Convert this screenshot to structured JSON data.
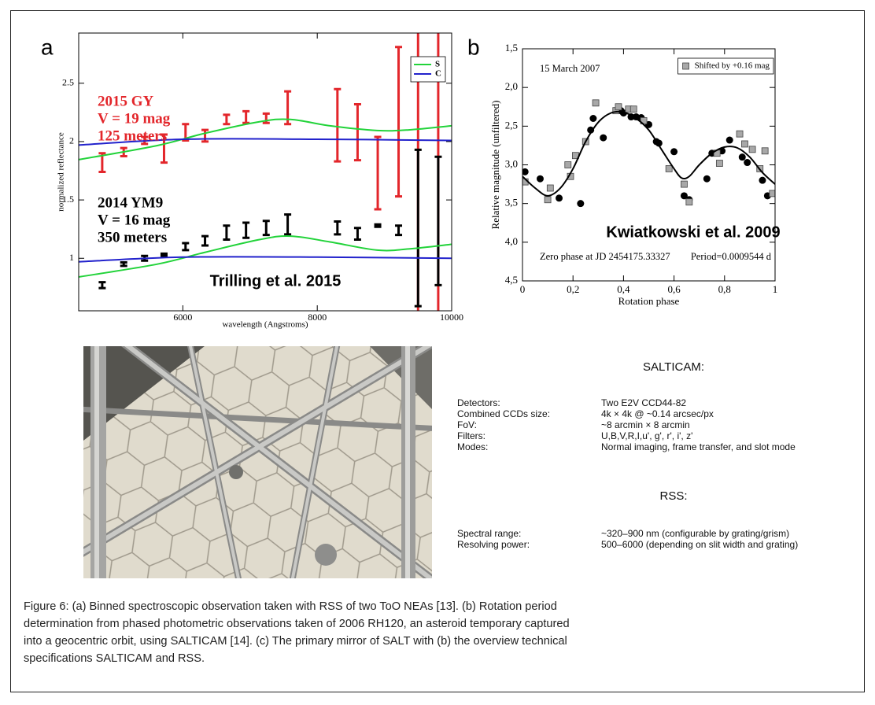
{
  "chart_data": [
    {
      "type": "errorbar",
      "panel": "a",
      "xlabel": "wavelength (Angstroms)",
      "ylabel": "normalized reflectance",
      "xlim": [
        4450,
        10000
      ],
      "ylim": [
        0.55,
        2.93
      ],
      "xticks": [
        6000,
        8000,
        10000
      ],
      "yticks": [
        1,
        1.5,
        2,
        2.5
      ],
      "citation": "Trilling et al. 2015",
      "legend": "upper right",
      "series": [
        {
          "name": "2015 GY",
          "details": [
            "V = 19 mag",
            "125 meters"
          ],
          "color": "#e3262b",
          "x": [
            4800,
            5120,
            5430,
            5720,
            6040,
            6330,
            6650,
            6940,
            7240,
            7560,
            8300,
            8600,
            8900,
            9210,
            9500,
            9800
          ],
          "values": [
            1.82,
            1.91,
            2.01,
            1.94,
            2.08,
            2.05,
            2.19,
            2.21,
            2.2,
            2.29,
            2.14,
            2.08,
            1.73,
            2.17,
            1.8,
            1.8
          ],
          "errors": [
            0.08,
            0.035,
            0.03,
            0.12,
            0.07,
            0.05,
            0.04,
            0.05,
            0.04,
            0.14,
            0.31,
            0.24,
            0.31,
            0.64,
            1.4,
            1.4
          ]
        },
        {
          "name": "2014 YM9",
          "details": [
            "V = 16 mag",
            "350 meters"
          ],
          "color": "#000000",
          "x": [
            4800,
            5120,
            5430,
            5720,
            6040,
            6330,
            6650,
            6940,
            7240,
            7560,
            8300,
            8600,
            8900,
            9210,
            9500,
            9800
          ],
          "values": [
            0.77,
            0.95,
            1.0,
            1.03,
            1.1,
            1.15,
            1.22,
            1.24,
            1.26,
            1.29,
            1.26,
            1.21,
            1.28,
            1.24,
            1.26,
            1.32
          ],
          "errors": [
            0.025,
            0.015,
            0.02,
            0.01,
            0.03,
            0.04,
            0.06,
            0.065,
            0.06,
            0.085,
            0.055,
            0.05,
            0.01,
            0.04,
            0.67,
            0.55
          ]
        },
        {
          "name": "S",
          "type": "line",
          "color": "#22d33a",
          "x": [
            4450,
            5620,
            6320,
            7140,
            7600,
            8190,
            8890,
            9360,
            10000,
            null,
            4450,
            5620,
            6320,
            7140,
            7600,
            8190,
            8890,
            9360,
            10000
          ],
          "values": [
            1.845,
            1.966,
            2.07,
            2.17,
            2.19,
            2.135,
            2.095,
            2.1,
            2.135,
            null,
            0.84,
            0.95,
            1.05,
            1.16,
            1.19,
            1.14,
            1.07,
            1.08,
            1.12
          ]
        },
        {
          "name": "C",
          "type": "line",
          "color": "#2222cc",
          "x": [
            4450,
            6000,
            8000,
            10000,
            null,
            4450,
            6000,
            8000,
            10000
          ],
          "values": [
            1.97,
            2.02,
            2.02,
            2.01,
            null,
            0.97,
            1.01,
            1.01,
            1.0
          ]
        }
      ]
    },
    {
      "type": "scatter",
      "panel": "b",
      "xlabel": "Rotation phase",
      "ylabel": "Relative magnitude (unfiltered)",
      "xlim": [
        0,
        1
      ],
      "ylim": [
        1.5,
        4.5
      ],
      "y_inverted": true,
      "xticks": [
        0,
        {
          "value": 0.2,
          "label": "0,2"
        },
        {
          "value": 0.4,
          "label": "0,4"
        },
        {
          "value": 0.6,
          "label": "0,6"
        },
        {
          "value": 0.8,
          "label": "0,8"
        },
        1
      ],
      "yticks": [
        {
          "value": 1.5,
          "label": "1,5"
        },
        {
          "value": 2.0,
          "label": "2,0"
        },
        {
          "value": 2.5,
          "label": "2,5"
        },
        {
          "value": 3.0,
          "label": "3,0"
        },
        {
          "value": 3.5,
          "label": "3,5"
        },
        {
          "value": 4.0,
          "label": "4,0"
        },
        {
          "value": 4.5,
          "label": "4,5"
        }
      ],
      "annotations": [
        "15 March 2007",
        "Zero phase at JD 2454175.33327",
        "Period=0.0009544 d"
      ],
      "citation": "Kwiatkowski et al. 2009",
      "legend": "upper right",
      "series": [
        {
          "marker": "circle",
          "color": "#000000",
          "x": [
            0.01,
            0.07,
            0.145,
            0.23,
            0.27,
            0.28,
            0.32,
            0.39,
            0.4,
            0.43,
            0.45,
            0.47,
            0.5,
            0.53,
            0.54,
            0.6,
            0.64,
            0.66,
            0.73,
            0.75,
            0.79,
            0.82,
            0.87,
            0.89,
            0.95,
            0.97
          ],
          "values": [
            3.09,
            3.18,
            3.43,
            3.5,
            2.55,
            2.4,
            2.65,
            2.3,
            2.33,
            2.38,
            2.38,
            2.39,
            2.48,
            2.7,
            2.72,
            2.83,
            3.4,
            3.45,
            3.18,
            2.85,
            2.82,
            2.68,
            2.9,
            2.97,
            3.2,
            3.4
          ]
        },
        {
          "name": "Shifted by +0.16 mag",
          "marker": "square",
          "color": "#a8a8a8",
          "x": [
            0.01,
            0.1,
            0.11,
            0.18,
            0.19,
            0.21,
            0.25,
            0.29,
            0.37,
            0.38,
            0.42,
            0.44,
            0.48,
            0.58,
            0.64,
            0.66,
            0.77,
            0.78,
            0.86,
            0.88,
            0.91,
            0.94,
            0.96,
            0.99
          ],
          "values": [
            3.22,
            3.45,
            3.3,
            3.0,
            3.15,
            2.88,
            2.7,
            2.2,
            2.3,
            2.25,
            2.28,
            2.28,
            2.43,
            3.05,
            3.25,
            3.48,
            2.85,
            2.98,
            2.6,
            2.73,
            2.8,
            3.05,
            2.82,
            3.37
          ]
        },
        {
          "type": "line",
          "color": "#000000",
          "x": [
            0,
            0.05,
            0.1,
            0.15,
            0.2,
            0.25,
            0.3,
            0.35,
            0.4,
            0.45,
            0.5,
            0.55,
            0.6,
            0.63,
            0.66,
            0.7,
            0.75,
            0.8,
            0.85,
            0.9,
            0.95,
            1.0
          ],
          "values": [
            3.15,
            3.3,
            3.4,
            3.3,
            3.05,
            2.7,
            2.45,
            2.33,
            2.32,
            2.4,
            2.55,
            2.8,
            3.05,
            3.17,
            3.15,
            3.0,
            2.85,
            2.77,
            2.78,
            2.9,
            3.1,
            3.25
          ]
        }
      ]
    }
  ],
  "specs": [
    {
      "heading": "SALTICAM:",
      "rows": [
        [
          "Detectors:",
          "Two E2V CCD44-82"
        ],
        [
          "Combined CCDs size:",
          "4k × 4k @ ~0.14 arcsec/px"
        ],
        [
          "FoV:",
          "~8 arcmin × 8 arcmin"
        ],
        [
          "Filters:",
          "U,B,V,R,I,u', g', r', i', z'"
        ],
        [
          "Modes:",
          "Normal imaging, frame transfer, and slot mode"
        ]
      ]
    },
    {
      "heading": "RSS:",
      "rows": [
        [
          "Spectral range:",
          "~320–900 nm (configurable by grating/grism)"
        ],
        [
          "Resolving power:",
          "500–6000 (depending on slit width and grating)"
        ]
      ]
    }
  ],
  "caption": [
    "Figure 6: (a) Binned spectroscopic observation taken with RSS of two ToO NEAs [13].  (b) Rotation period",
    "determination from phased photometric observations taken of 2006 RH120, an asteroid temporary captured",
    "into a geocentric orbit, using SALTICAM [14]. (c) The primary mirror of SALT with (b) the overview technical",
    "specifications SALTICAM and RSS."
  ]
}
